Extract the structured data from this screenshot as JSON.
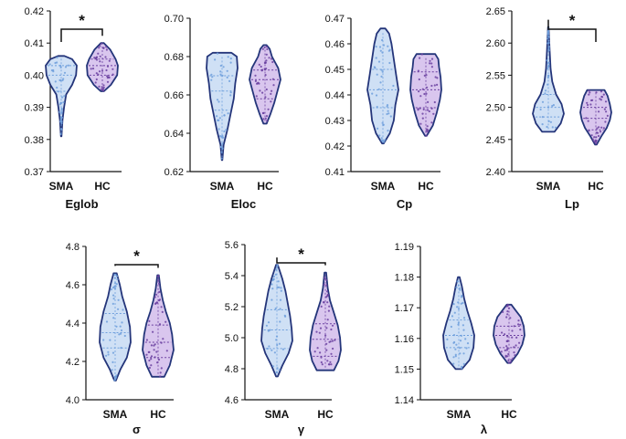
{
  "chart_data": [
    {
      "type": "violin",
      "title": "Eglob",
      "categories": [
        "SMA",
        "HC"
      ],
      "yticks": [
        "0.37",
        "0.38",
        "0.39",
        "0.40",
        "0.41",
        "0.42"
      ],
      "ylim": [
        0.37,
        0.42
      ],
      "series": [
        {
          "name": "SMA",
          "min": 0.381,
          "q1": 0.395,
          "median": 0.4,
          "q3": 0.403,
          "max": 0.406,
          "color": "#6f9fdc",
          "fill": "#cfe0f5",
          "shape": [
            [
              0.381,
              0.02
            ],
            [
              0.386,
              0.08
            ],
            [
              0.39,
              0.18
            ],
            [
              0.394,
              0.32
            ],
            [
              0.397,
              0.7
            ],
            [
              0.4,
              0.95
            ],
            [
              0.403,
              1.0
            ],
            [
              0.405,
              0.7
            ],
            [
              0.406,
              0.2
            ]
          ]
        },
        {
          "name": "HC",
          "min": 0.395,
          "q1": 0.4,
          "median": 0.403,
          "q3": 0.405,
          "max": 0.41,
          "color": "#6a3fa0",
          "fill": "#d9c6ee",
          "shape": [
            [
              0.395,
              0.1
            ],
            [
              0.397,
              0.55
            ],
            [
              0.4,
              0.95
            ],
            [
              0.403,
              1.0
            ],
            [
              0.405,
              0.85
            ],
            [
              0.408,
              0.5
            ],
            [
              0.41,
              0.1
            ]
          ]
        }
      ],
      "significance": "*"
    },
    {
      "type": "violin",
      "title": "Eloc",
      "categories": [
        "SMA",
        "HC"
      ],
      "yticks": [
        "0.62",
        "0.64",
        "0.66",
        "0.68",
        "0.70"
      ],
      "ylim": [
        0.62,
        0.7
      ],
      "series": [
        {
          "name": "SMA",
          "min": 0.626,
          "q1": 0.652,
          "median": 0.662,
          "q3": 0.67,
          "max": 0.682,
          "color": "#6f9fdc",
          "fill": "#cfe0f5",
          "shape": [
            [
              0.626,
              0.02
            ],
            [
              0.634,
              0.1
            ],
            [
              0.642,
              0.35
            ],
            [
              0.65,
              0.55
            ],
            [
              0.658,
              0.75
            ],
            [
              0.666,
              0.85
            ],
            [
              0.674,
              1.0
            ],
            [
              0.68,
              0.95
            ],
            [
              0.682,
              0.6
            ]
          ]
        },
        {
          "name": "HC",
          "min": 0.645,
          "q1": 0.658,
          "median": 0.668,
          "q3": 0.673,
          "max": 0.686,
          "color": "#6a3fa0",
          "fill": "#d9c6ee",
          "shape": [
            [
              0.645,
              0.1
            ],
            [
              0.65,
              0.35
            ],
            [
              0.656,
              0.6
            ],
            [
              0.662,
              0.8
            ],
            [
              0.668,
              1.0
            ],
            [
              0.674,
              0.85
            ],
            [
              0.68,
              0.45
            ],
            [
              0.684,
              0.3
            ],
            [
              0.686,
              0.1
            ]
          ]
        }
      ],
      "significance": ""
    },
    {
      "type": "violin",
      "title": "Cp",
      "categories": [
        "SMA",
        "HC"
      ],
      "yticks": [
        "0.41",
        "0.42",
        "0.43",
        "0.44",
        "0.45",
        "0.46",
        "0.47"
      ],
      "ylim": [
        0.41,
        0.47
      ],
      "series": [
        {
          "name": "SMA",
          "min": 0.421,
          "q1": 0.435,
          "median": 0.442,
          "q3": 0.45,
          "max": 0.466,
          "color": "#6f9fdc",
          "fill": "#cfe0f5",
          "shape": [
            [
              0.421,
              0.05
            ],
            [
              0.425,
              0.45
            ],
            [
              0.43,
              0.7
            ],
            [
              0.436,
              0.8
            ],
            [
              0.442,
              1.0
            ],
            [
              0.448,
              0.85
            ],
            [
              0.454,
              0.7
            ],
            [
              0.46,
              0.55
            ],
            [
              0.464,
              0.4
            ],
            [
              0.466,
              0.15
            ]
          ]
        },
        {
          "name": "HC",
          "min": 0.424,
          "q1": 0.435,
          "median": 0.442,
          "q3": 0.449,
          "max": 0.456,
          "color": "#6a3fa0",
          "fill": "#d9c6ee",
          "shape": [
            [
              0.424,
              0.05
            ],
            [
              0.428,
              0.45
            ],
            [
              0.433,
              0.7
            ],
            [
              0.438,
              0.9
            ],
            [
              0.442,
              1.0
            ],
            [
              0.447,
              0.95
            ],
            [
              0.451,
              0.85
            ],
            [
              0.454,
              0.8
            ],
            [
              0.456,
              0.6
            ]
          ]
        }
      ],
      "significance": ""
    },
    {
      "type": "violin",
      "title": "Lp",
      "categories": [
        "SMA",
        "HC"
      ],
      "yticks": [
        "2.40",
        "2.45",
        "2.50",
        "2.55",
        "2.60",
        "2.65"
      ],
      "ylim": [
        2.4,
        2.65
      ],
      "series": [
        {
          "name": "SMA",
          "min": 2.462,
          "q1": 2.485,
          "median": 2.5,
          "q3": 2.52,
          "max": 2.625,
          "color": "#6f9fdc",
          "fill": "#cfe0f5",
          "shape": [
            [
              2.462,
              0.4
            ],
            [
              2.475,
              0.8
            ],
            [
              2.49,
              1.0
            ],
            [
              2.505,
              0.85
            ],
            [
              2.52,
              0.5
            ],
            [
              2.54,
              0.25
            ],
            [
              2.56,
              0.15
            ],
            [
              2.59,
              0.08
            ],
            [
              2.625,
              0.02
            ]
          ]
        },
        {
          "name": "HC",
          "min": 2.442,
          "q1": 2.465,
          "median": 2.483,
          "q3": 2.5,
          "max": 2.527,
          "color": "#6a3fa0",
          "fill": "#d9c6ee",
          "shape": [
            [
              2.442,
              0.05
            ],
            [
              2.455,
              0.35
            ],
            [
              2.468,
              0.7
            ],
            [
              2.48,
              0.9
            ],
            [
              2.492,
              1.0
            ],
            [
              2.505,
              0.9
            ],
            [
              2.518,
              0.75
            ],
            [
              2.527,
              0.55
            ]
          ]
        }
      ],
      "significance": "*"
    },
    {
      "type": "violin",
      "title": "σ",
      "categories": [
        "SMA",
        "HC"
      ],
      "yticks": [
        "4.0",
        "4.2",
        "4.4",
        "4.6",
        "4.8"
      ],
      "ylim": [
        4.0,
        4.8
      ],
      "series": [
        {
          "name": "SMA",
          "min": 4.1,
          "q1": 4.27,
          "median": 4.35,
          "q3": 4.45,
          "max": 4.66,
          "color": "#6f9fdc",
          "fill": "#cfe0f5",
          "shape": [
            [
              4.1,
              0.05
            ],
            [
              4.16,
              0.35
            ],
            [
              4.22,
              0.75
            ],
            [
              4.3,
              1.0
            ],
            [
              4.38,
              0.95
            ],
            [
              4.46,
              0.75
            ],
            [
              4.54,
              0.45
            ],
            [
              4.6,
              0.3
            ],
            [
              4.66,
              0.1
            ]
          ]
        },
        {
          "name": "HC",
          "min": 4.12,
          "q1": 4.22,
          "median": 4.3,
          "q3": 4.39,
          "max": 4.65,
          "color": "#6a3fa0",
          "fill": "#d9c6ee",
          "shape": [
            [
              4.12,
              0.4
            ],
            [
              4.18,
              0.75
            ],
            [
              4.26,
              1.0
            ],
            [
              4.34,
              0.9
            ],
            [
              4.4,
              0.75
            ],
            [
              4.46,
              0.5
            ],
            [
              4.52,
              0.3
            ],
            [
              4.58,
              0.15
            ],
            [
              4.65,
              0.05
            ]
          ]
        }
      ],
      "significance": "*"
    },
    {
      "type": "violin",
      "title": "γ",
      "categories": [
        "SMA",
        "HC"
      ],
      "yticks": [
        "4.6",
        "4.8",
        "5.0",
        "5.2",
        "5.4",
        "5.6"
      ],
      "ylim": [
        4.6,
        5.6
      ],
      "series": [
        {
          "name": "SMA",
          "min": 4.75,
          "q1": 4.93,
          "median": 5.05,
          "q3": 5.18,
          "max": 5.47,
          "color": "#6f9fdc",
          "fill": "#cfe0f5",
          "shape": [
            [
              4.75,
              0.05
            ],
            [
              4.82,
              0.35
            ],
            [
              4.9,
              0.75
            ],
            [
              4.98,
              1.0
            ],
            [
              5.06,
              0.95
            ],
            [
              5.14,
              0.85
            ],
            [
              5.22,
              0.7
            ],
            [
              5.3,
              0.55
            ],
            [
              5.38,
              0.35
            ],
            [
              5.47,
              0.05
            ]
          ]
        },
        {
          "name": "HC",
          "min": 4.79,
          "q1": 4.88,
          "median": 4.99,
          "q3": 5.09,
          "max": 5.42,
          "color": "#6a3fa0",
          "fill": "#d9c6ee",
          "shape": [
            [
              4.79,
              0.55
            ],
            [
              4.85,
              0.85
            ],
            [
              4.92,
              1.0
            ],
            [
              5.0,
              0.95
            ],
            [
              5.08,
              0.8
            ],
            [
              5.16,
              0.55
            ],
            [
              5.24,
              0.3
            ],
            [
              5.32,
              0.15
            ],
            [
              5.42,
              0.05
            ]
          ]
        }
      ],
      "significance": "*"
    },
    {
      "type": "violin",
      "title": "λ",
      "categories": [
        "SMA",
        "HC"
      ],
      "yticks": [
        "1.14",
        "1.15",
        "1.16",
        "1.17",
        "1.18",
        "1.19"
      ],
      "ylim": [
        1.14,
        1.19
      ],
      "series": [
        {
          "name": "SMA",
          "min": 1.15,
          "q1": 1.157,
          "median": 1.161,
          "q3": 1.166,
          "max": 1.18,
          "color": "#6f9fdc",
          "fill": "#cfe0f5",
          "shape": [
            [
              1.15,
              0.2
            ],
            [
              1.153,
              0.7
            ],
            [
              1.157,
              0.95
            ],
            [
              1.161,
              1.0
            ],
            [
              1.165,
              0.8
            ],
            [
              1.169,
              0.55
            ],
            [
              1.173,
              0.35
            ],
            [
              1.177,
              0.2
            ],
            [
              1.18,
              0.05
            ]
          ]
        },
        {
          "name": "HC",
          "min": 1.152,
          "q1": 1.157,
          "median": 1.161,
          "q3": 1.164,
          "max": 1.171,
          "color": "#6a3fa0",
          "fill": "#d9c6ee",
          "shape": [
            [
              1.152,
              0.1
            ],
            [
              1.155,
              0.55
            ],
            [
              1.158,
              0.85
            ],
            [
              1.161,
              1.0
            ],
            [
              1.164,
              0.95
            ],
            [
              1.167,
              0.75
            ],
            [
              1.169,
              0.45
            ],
            [
              1.171,
              0.15
            ]
          ]
        }
      ],
      "significance": ""
    }
  ]
}
